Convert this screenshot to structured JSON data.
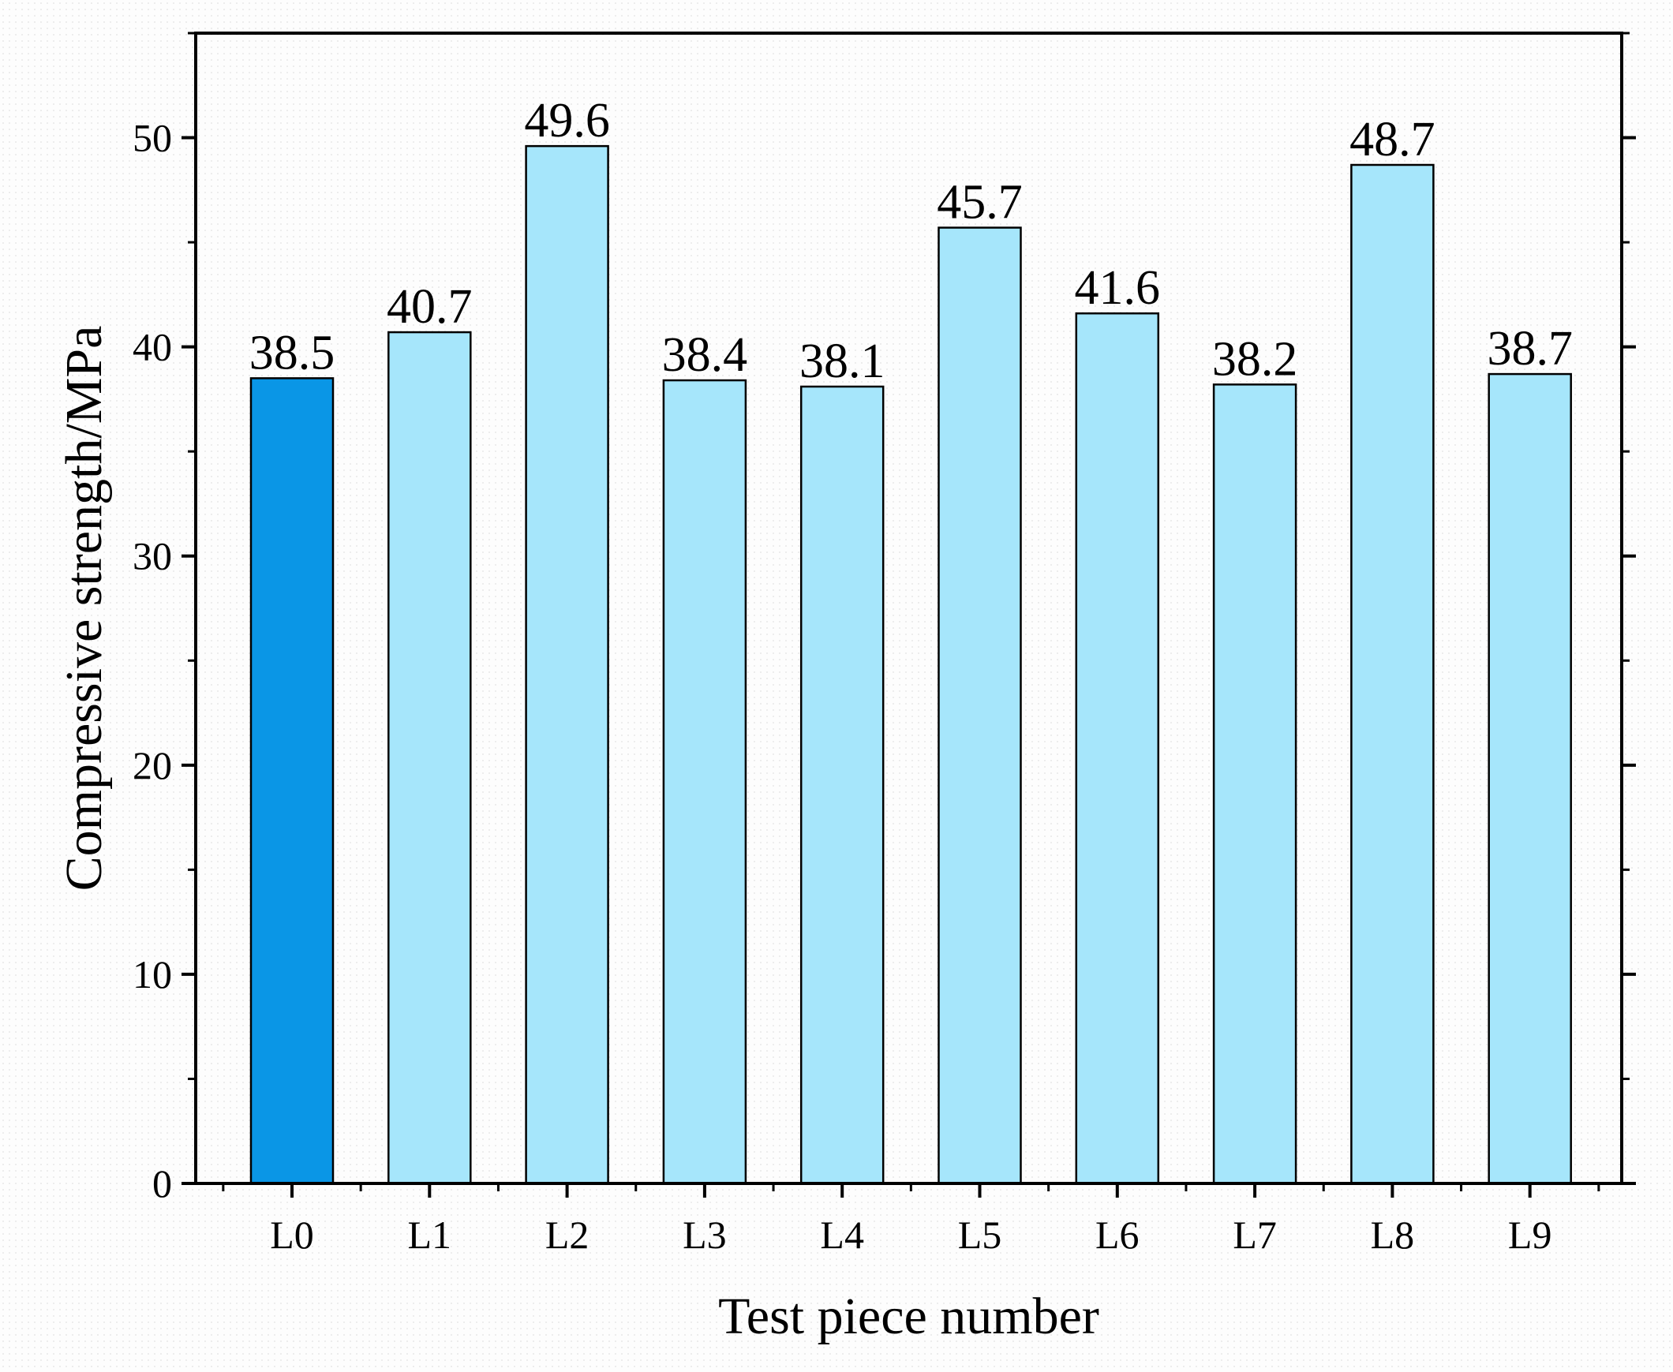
{
  "chart_data": {
    "type": "bar",
    "title": "",
    "xlabel": "Test piece number",
    "ylabel": "Compressive strength/MPa",
    "categories": [
      "L0",
      "L1",
      "L2",
      "L3",
      "L4",
      "L5",
      "L6",
      "L7",
      "L8",
      "L9"
    ],
    "values": [
      38.5,
      40.7,
      49.6,
      38.4,
      38.1,
      45.7,
      41.6,
      38.2,
      48.7,
      38.7
    ],
    "data_labels": [
      "38.5",
      "40.7",
      "49.6",
      "38.4",
      "38.1",
      "45.7",
      "41.6",
      "38.2",
      "48.7",
      "38.7"
    ],
    "ylim": [
      0,
      55
    ],
    "yticks": [
      0,
      10,
      20,
      30,
      40,
      50
    ],
    "ytick_labels": [
      "0",
      "10",
      "20",
      "30",
      "40",
      "50"
    ],
    "grid": false,
    "highlight_index": 0,
    "colors": {
      "highlight_bar": "#0a96e6",
      "bar": "#a6e6fb",
      "bar_edge": "#000000",
      "axis": "#000000"
    }
  }
}
